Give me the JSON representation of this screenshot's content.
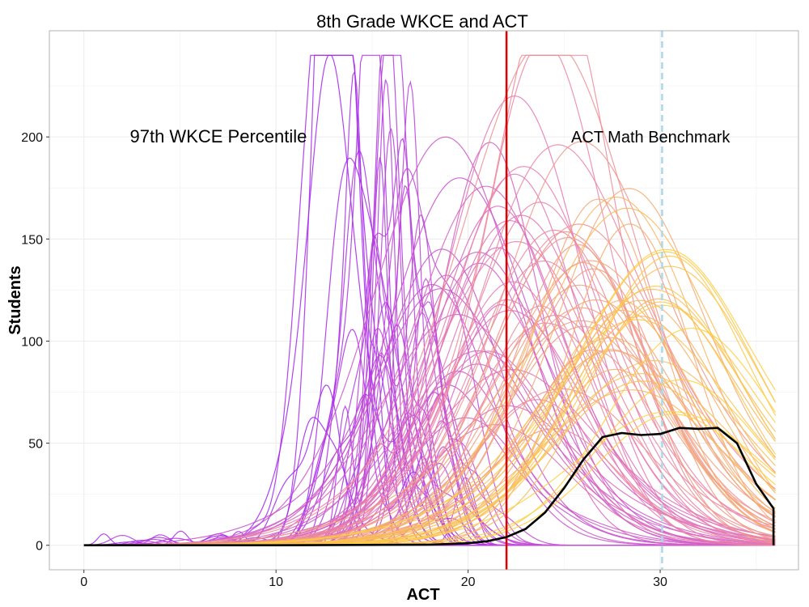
{
  "chart_data": {
    "type": "line",
    "title": "8th Grade WKCE and ACT",
    "xlabel": "ACT",
    "ylabel": "Students",
    "xlim": [
      -1.8,
      37.2
    ],
    "ylim": [
      -12,
      252
    ],
    "x_ticks": [
      0,
      10,
      20,
      30
    ],
    "y_ticks": [
      0,
      50,
      100,
      150,
      200
    ],
    "grid": true,
    "colors": {
      "low": "#a020f0",
      "mid": "#e87ab0",
      "high": "#ffd23a",
      "reference_line": "#e00000",
      "benchmark_line": "#add8e6",
      "highlight_series": "#000000",
      "panel_border": "#b3b3b3",
      "grid_major": "#ececec",
      "grid_minor": "#f6f6f6"
    },
    "reference_lines": [
      {
        "name": "97th WKCE Percentile",
        "x": 22,
        "style": "solid"
      },
      {
        "name": "ACT Math Benchmark",
        "x": 30.1,
        "style": "dashed"
      }
    ],
    "annotations": [
      {
        "text": "97th WKCE Percentile",
        "x": 7,
        "y": 200
      },
      {
        "text": "ACT Math Benchmark",
        "x": 29.5,
        "y": 200
      }
    ],
    "background_series": {
      "count": 120,
      "description": "density curves of ACT scores per WKCE percentile, colored from purple (low percentile) to yellow (high percentile)",
      "x_range": [
        0,
        36
      ],
      "peak_x_range": [
        12.5,
        31
      ],
      "peak_y_range": [
        20,
        238
      ]
    },
    "highlight_series": {
      "name": "97th WKCE Percentile",
      "x": [
        0,
        10,
        18,
        20,
        21,
        22,
        23,
        24,
        25,
        26,
        27,
        28,
        29,
        30,
        31,
        32,
        33,
        34,
        35,
        35.9,
        35.9
      ],
      "y": [
        0,
        0,
        0.3,
        1,
        2,
        4,
        8,
        16,
        28,
        42,
        53,
        55,
        54,
        54.5,
        57.5,
        57,
        57.5,
        50,
        30,
        18,
        0
      ]
    }
  }
}
